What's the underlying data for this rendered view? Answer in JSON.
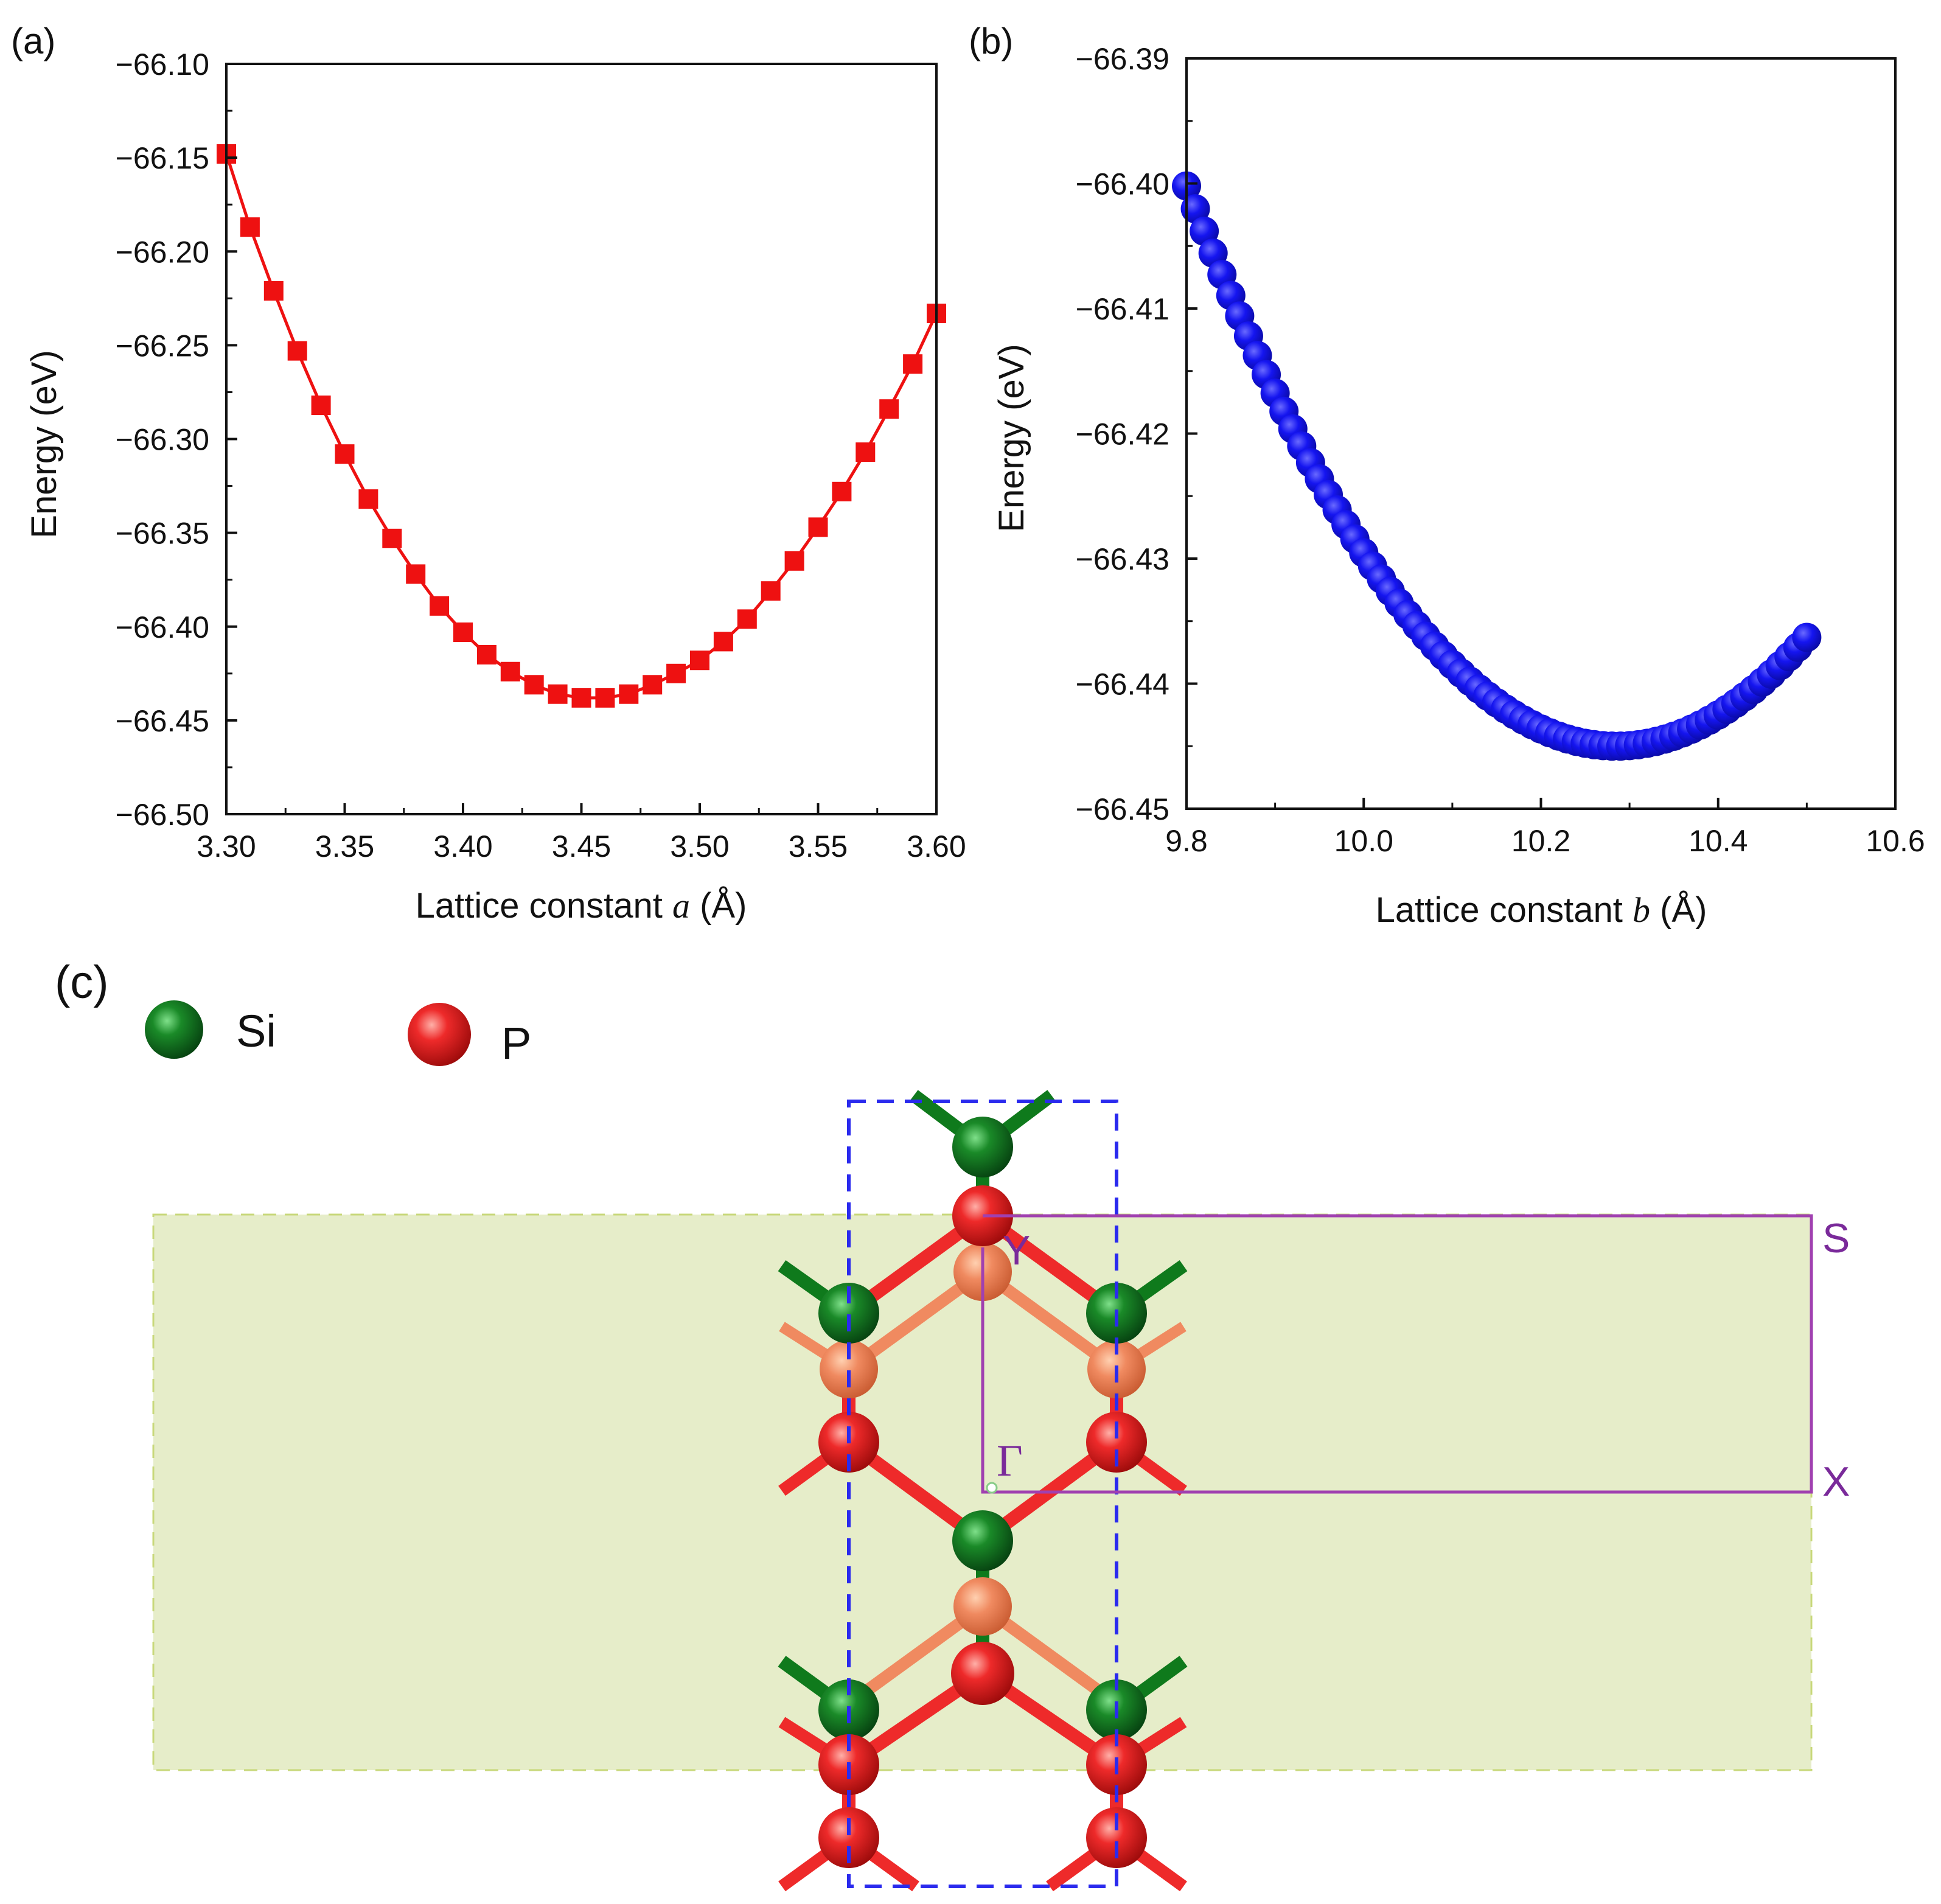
{
  "panel_labels": {
    "a": "(a)",
    "b": "(b)",
    "c": "(c)"
  },
  "chart_data": [
    {
      "id": "a",
      "type": "line",
      "title": "",
      "xlabel_prefix": "Lattice constant ",
      "xlabel_var": "a",
      "xlabel_suffix": " (Å)",
      "ylabel": "Energy (eV)",
      "xlim": [
        3.3,
        3.6
      ],
      "ylim": [
        -66.5,
        -66.1
      ],
      "x_ticks": [
        "3.30",
        "3.35",
        "3.40",
        "3.45",
        "3.50",
        "3.55",
        "3.60"
      ],
      "y_ticks": [
        "−66.10",
        "−66.15",
        "−66.20",
        "−66.25",
        "−66.30",
        "−66.35",
        "−66.40",
        "−66.45",
        "−66.50"
      ],
      "marker": "square",
      "color": "#ee1111",
      "series": [
        {
          "name": "Energy vs a",
          "x": [
            3.3,
            3.31,
            3.32,
            3.33,
            3.34,
            3.35,
            3.36,
            3.37,
            3.38,
            3.39,
            3.4,
            3.41,
            3.42,
            3.43,
            3.44,
            3.45,
            3.46,
            3.47,
            3.48,
            3.49,
            3.5,
            3.51,
            3.52,
            3.53,
            3.54,
            3.55,
            3.56,
            3.57,
            3.58,
            3.59,
            3.6
          ],
          "y": [
            -66.148,
            -66.187,
            -66.221,
            -66.253,
            -66.282,
            -66.308,
            -66.332,
            -66.353,
            -66.372,
            -66.389,
            -66.403,
            -66.415,
            -66.424,
            -66.431,
            -66.436,
            -66.438,
            -66.438,
            -66.436,
            -66.431,
            -66.425,
            -66.418,
            -66.408,
            -66.396,
            -66.381,
            -66.365,
            -66.347,
            -66.328,
            -66.307,
            -66.284,
            -66.26,
            -66.233
          ]
        }
      ]
    },
    {
      "id": "b",
      "type": "scatter",
      "title": "",
      "xlabel_prefix": "Lattice constant ",
      "xlabel_var": "b",
      "xlabel_suffix": " (Å)",
      "ylabel": "Energy (eV)",
      "xlim": [
        9.8,
        10.6
      ],
      "ylim": [
        -66.45,
        -66.39
      ],
      "x_ticks": [
        "9.8",
        "10.0",
        "10.2",
        "10.4",
        "10.6"
      ],
      "y_ticks": [
        "−66.39",
        "−66.40",
        "−66.41",
        "−66.42",
        "−66.43",
        "−66.44",
        "−66.45"
      ],
      "marker": "circle",
      "color": "#1010ee",
      "series": [
        {
          "name": "Energy vs b",
          "x_start": 9.8,
          "x_end": 10.5,
          "count": 71,
          "min_x": 10.285,
          "min_y": -66.445,
          "value_at_start": -66.4002,
          "value_at_end": -66.4363
        }
      ]
    }
  ],
  "structure": {
    "legend": [
      {
        "label": "Si",
        "color": "#0f7a1c"
      },
      {
        "label": "P",
        "color": "#ee2a2a"
      }
    ],
    "bz_labels": {
      "s": "S",
      "x": "X",
      "y": "Y",
      "gamma": "Γ"
    },
    "colors": {
      "si": "#0f7a1c",
      "p": "#ee2a2a",
      "p_faded": "#f08060",
      "slab": "#e6edc9",
      "unit_cell": "#2a2aee",
      "bz": "#a040b0"
    }
  }
}
